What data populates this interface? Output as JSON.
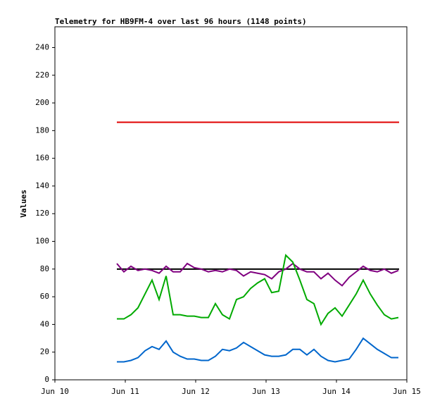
{
  "chart_data": {
    "type": "line",
    "title": "Telemetry for HB9FM-4 over last 96 hours (1148 points)",
    "y_label": "Values",
    "xlim": [
      10,
      15
    ],
    "xticks": [
      {
        "value": 10,
        "label": "Jun 10"
      },
      {
        "value": 11,
        "label": "Jun 11"
      },
      {
        "value": 12,
        "label": "Jun 12"
      },
      {
        "value": 13,
        "label": "Jun 13"
      },
      {
        "value": 14,
        "label": "Jun 14"
      },
      {
        "value": 15,
        "label": "Jun 15"
      }
    ],
    "ylim": [
      0,
      255
    ],
    "yticks": [
      0,
      20,
      40,
      60,
      80,
      100,
      120,
      140,
      160,
      180,
      200,
      220,
      240
    ],
    "series": [
      {
        "color": "#e00000",
        "x": [
          10.88,
          14.89
        ],
        "values": [
          186,
          186
        ]
      },
      {
        "color": "#000000",
        "x": [
          10.88,
          14.89
        ],
        "values": [
          80,
          80
        ]
      },
      {
        "color": "#800080",
        "x": [
          10.88,
          10.98,
          11.08,
          11.18,
          11.28,
          11.38,
          11.48,
          11.58,
          11.68,
          11.78,
          11.88,
          11.98,
          12.08,
          12.18,
          12.28,
          12.38,
          12.48,
          12.58,
          12.68,
          12.78,
          12.88,
          12.98,
          13.08,
          13.18,
          13.28,
          13.38,
          13.48,
          13.58,
          13.68,
          13.78,
          13.88,
          13.98,
          14.08,
          14.18,
          14.28,
          14.38,
          14.48,
          14.58,
          14.68,
          14.78,
          14.88
        ],
        "values": [
          84,
          78,
          82,
          79,
          80,
          79,
          77,
          82,
          78,
          78,
          84,
          81,
          80,
          78,
          79,
          78,
          80,
          79,
          75,
          78,
          77,
          76,
          73,
          78,
          80,
          84,
          80,
          78,
          78,
          73,
          77,
          72,
          68,
          74,
          78,
          82,
          79,
          78,
          80,
          77,
          79
        ]
      },
      {
        "color": "#00aa00",
        "x": [
          10.88,
          10.98,
          11.08,
          11.18,
          11.28,
          11.38,
          11.48,
          11.58,
          11.68,
          11.78,
          11.88,
          11.98,
          12.08,
          12.18,
          12.28,
          12.38,
          12.48,
          12.58,
          12.68,
          12.78,
          12.88,
          12.98,
          13.08,
          13.18,
          13.28,
          13.38,
          13.48,
          13.58,
          13.68,
          13.78,
          13.88,
          13.98,
          14.08,
          14.18,
          14.28,
          14.38,
          14.48,
          14.58,
          14.68,
          14.78,
          14.88
        ],
        "values": [
          44,
          44,
          47,
          52,
          62,
          72,
          58,
          75,
          47,
          47,
          46,
          46,
          45,
          45,
          55,
          47,
          44,
          58,
          60,
          66,
          70,
          73,
          63,
          64,
          90,
          85,
          72,
          58,
          55,
          40,
          48,
          52,
          46,
          54,
          62,
          72,
          62,
          54,
          47,
          44,
          45
        ]
      },
      {
        "color": "#0066cc",
        "x": [
          10.88,
          10.98,
          11.08,
          11.18,
          11.28,
          11.38,
          11.48,
          11.58,
          11.68,
          11.78,
          11.88,
          11.98,
          12.08,
          12.18,
          12.28,
          12.38,
          12.48,
          12.58,
          12.68,
          12.78,
          12.88,
          12.98,
          13.08,
          13.18,
          13.28,
          13.38,
          13.48,
          13.58,
          13.68,
          13.78,
          13.88,
          13.98,
          14.08,
          14.18,
          14.28,
          14.38,
          14.48,
          14.58,
          14.68,
          14.78,
          14.88
        ],
        "values": [
          13,
          13,
          14,
          16,
          21,
          24,
          22,
          28,
          20,
          17,
          15,
          15,
          14,
          14,
          17,
          22,
          21,
          23,
          27,
          24,
          21,
          18,
          17,
          17,
          18,
          22,
          22,
          18,
          22,
          17,
          14,
          13,
          14,
          15,
          22,
          30,
          26,
          22,
          19,
          16,
          16
        ]
      }
    ]
  }
}
